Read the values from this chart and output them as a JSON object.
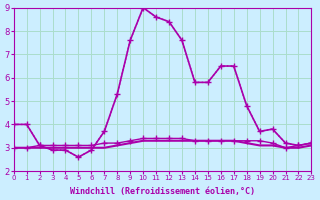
{
  "xlabel": "Windchill (Refroidissement éolien,°C)",
  "ylabel": "",
  "bg_color": "#cceeff",
  "grid_color": "#aaddcc",
  "line_color": "#aa00aa",
  "xlim": [
    0,
    23
  ],
  "ylim": [
    2,
    9
  ],
  "yticks": [
    2,
    3,
    4,
    5,
    6,
    7,
    8,
    9
  ],
  "xticks": [
    0,
    1,
    2,
    3,
    4,
    5,
    6,
    7,
    8,
    9,
    10,
    11,
    12,
    13,
    14,
    15,
    16,
    17,
    18,
    19,
    20,
    21,
    22,
    23
  ],
  "series": [
    {
      "x": [
        0,
        1,
        2,
        3,
        4,
        5,
        6,
        7,
        8,
        9,
        10,
        11,
        12,
        13,
        14,
        15,
        16,
        17,
        18,
        19,
        20,
        21,
        22,
        23
      ],
      "y": [
        4.0,
        4.0,
        3.1,
        2.9,
        2.9,
        2.6,
        2.9,
        3.7,
        5.3,
        7.6,
        9.0,
        8.6,
        8.4,
        7.6,
        5.8,
        5.8,
        6.5,
        6.5,
        4.8,
        3.7,
        3.8,
        3.2,
        3.1,
        3.2
      ],
      "style": "-",
      "marker": "+",
      "markersize": 5,
      "linewidth": 1.2,
      "zorder": 3
    },
    {
      "x": [
        0,
        1,
        2,
        3,
        4,
        5,
        6,
        7,
        8,
        9,
        10,
        11,
        12,
        13,
        14,
        15,
        16,
        17,
        18,
        19,
        20,
        21,
        22,
        23
      ],
      "y": [
        4.0,
        4.0,
        3.1,
        2.9,
        2.9,
        2.6,
        2.9,
        3.7,
        5.3,
        7.6,
        9.0,
        8.6,
        8.4,
        7.6,
        5.8,
        5.8,
        6.5,
        6.5,
        4.8,
        3.7,
        3.8,
        3.2,
        3.1,
        3.2
      ],
      "style": ":",
      "marker": null,
      "markersize": 0,
      "linewidth": 1.0,
      "zorder": 2
    },
    {
      "x": [
        0,
        1,
        2,
        3,
        4,
        5,
        6,
        7,
        8,
        9,
        10,
        11,
        12,
        13,
        14,
        15,
        16,
        17,
        18,
        19,
        20,
        21,
        22,
        23
      ],
      "y": [
        3.0,
        3.0,
        3.1,
        3.1,
        3.1,
        3.1,
        3.1,
        3.2,
        3.2,
        3.3,
        3.4,
        3.4,
        3.4,
        3.4,
        3.3,
        3.3,
        3.3,
        3.3,
        3.3,
        3.3,
        3.2,
        3.0,
        3.1,
        3.2
      ],
      "style": "-",
      "marker": "+",
      "markersize": 4,
      "linewidth": 1.0,
      "zorder": 3
    },
    {
      "x": [
        0,
        1,
        2,
        3,
        4,
        5,
        6,
        7,
        8,
        9,
        10,
        11,
        12,
        13,
        14,
        15,
        16,
        17,
        18,
        19,
        20,
        21,
        22,
        23
      ],
      "y": [
        3.0,
        3.0,
        3.0,
        3.0,
        3.0,
        3.0,
        3.0,
        3.0,
        3.1,
        3.2,
        3.3,
        3.3,
        3.3,
        3.3,
        3.3,
        3.3,
        3.3,
        3.3,
        3.2,
        3.1,
        3.1,
        3.0,
        3.0,
        3.1
      ],
      "style": "-",
      "marker": null,
      "markersize": 0,
      "linewidth": 1.5,
      "zorder": 2
    }
  ]
}
